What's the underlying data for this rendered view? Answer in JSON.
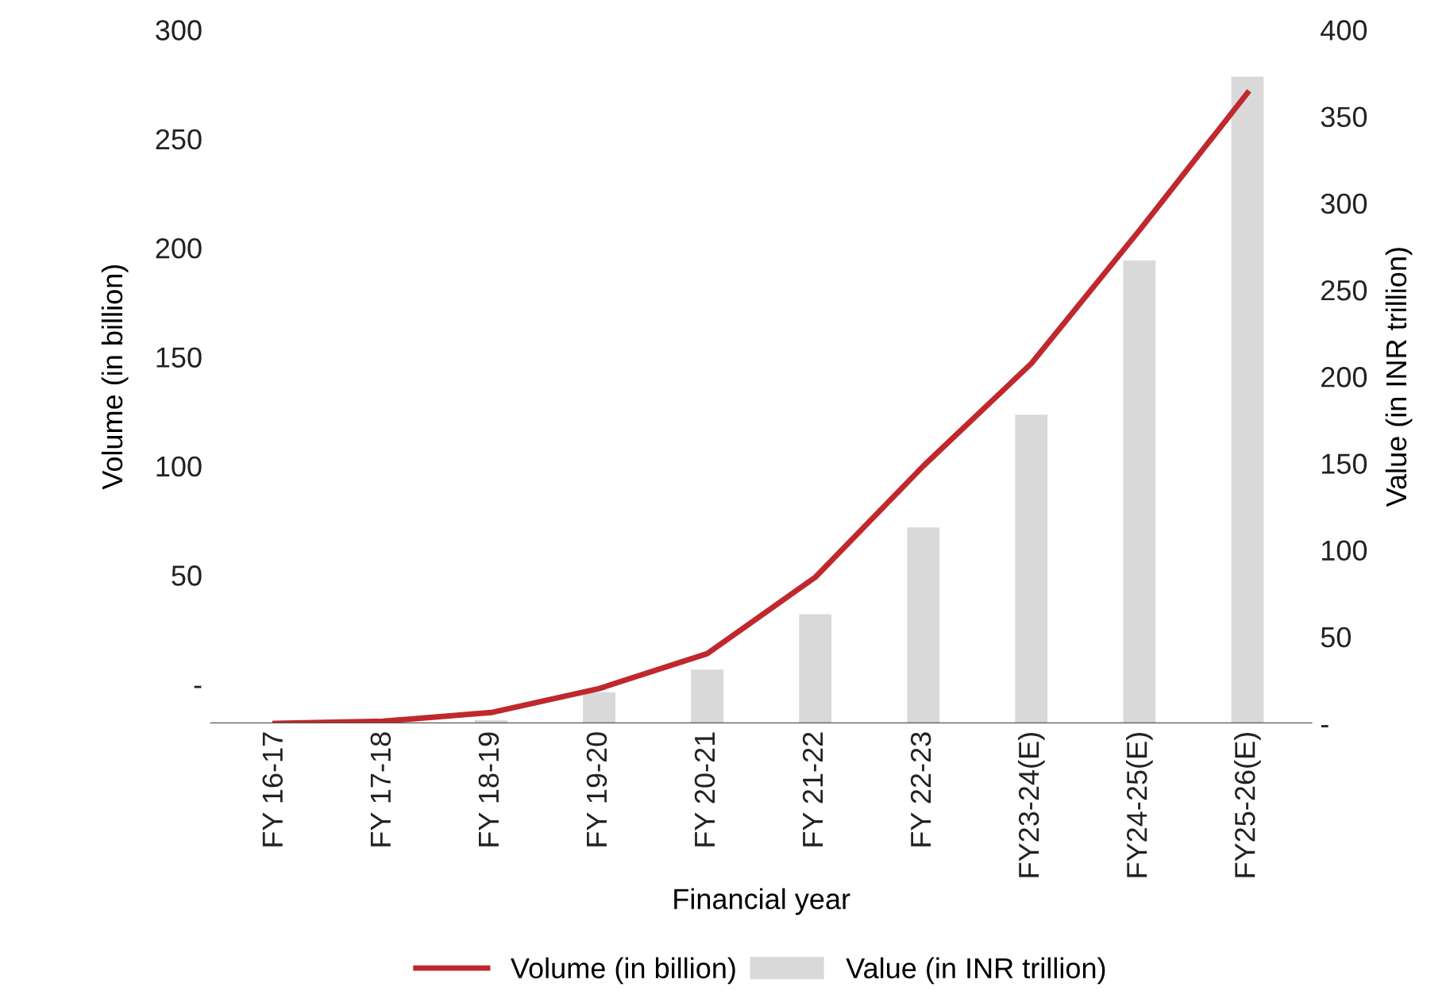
{
  "chart_data": {
    "type": "bar",
    "xlabel": "Financial year",
    "ylabel": "Volume (in billion)",
    "y2label": "Value (in INR trillion)",
    "categories": [
      "FY 16-17",
      "FY 17-18",
      "FY 18-19",
      "FY 19-20",
      "FY 20-21",
      "FY 21-22",
      "FY 22-23",
      "FY23-24(E)",
      "FY24-25(E)",
      "FY25-26(E)"
    ],
    "series": [
      {
        "name": "Volume (in billion)",
        "type": "line",
        "axis": "y",
        "color": "#c0282d",
        "values": [
          -18,
          -17,
          -13,
          -2,
          14,
          49,
          100,
          147,
          208,
          271
        ]
      },
      {
        "name": "Value (in INR trillion)",
        "axis": "y2",
        "color": "#d9d9d9",
        "values": [
          0,
          0,
          2,
          18,
          31,
          63,
          113,
          178,
          267,
          373
        ]
      }
    ],
    "ylim": [
      -18,
      300
    ],
    "yticks": [
      {
        "value": 0,
        "label": "-"
      },
      50,
      100,
      150,
      200,
      250,
      300
    ],
    "y2lim": [
      0,
      400
    ],
    "y2ticks": [
      {
        "value": 0,
        "label": "-"
      },
      50,
      100,
      150,
      200,
      250,
      300,
      350,
      400
    ],
    "legend": "bottom",
    "grid": false,
    "marker": "none",
    "line_style": "solid"
  }
}
